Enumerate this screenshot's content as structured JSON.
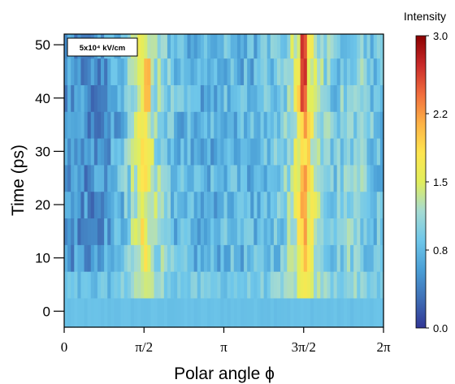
{
  "chart_data": {
    "type": "heatmap",
    "title": "",
    "xlabel": "Polar angle ϕ",
    "ylabel": "Time (ps)",
    "xlim": [
      0,
      6.2832
    ],
    "ylim": [
      -3,
      52
    ],
    "x_ticks": [
      {
        "value": 0,
        "label": "0"
      },
      {
        "value": 1.5708,
        "label": "π/2"
      },
      {
        "value": 3.1416,
        "label": "π"
      },
      {
        "value": 4.7124,
        "label": "3π/2"
      },
      {
        "value": 6.2832,
        "label": "2π"
      }
    ],
    "y_ticks": [
      {
        "value": 0,
        "label": "0"
      },
      {
        "value": 10,
        "label": "10"
      },
      {
        "value": 20,
        "label": "20"
      },
      {
        "value": 30,
        "label": "30"
      },
      {
        "value": 40,
        "label": "40"
      },
      {
        "value": 50,
        "label": "50"
      }
    ],
    "annotation": "5x10⁴ kV/cm",
    "colorbar": {
      "label": "Intensity",
      "min": 0.0,
      "max": 3.0,
      "ticks": [
        {
          "value": 0.0,
          "label": "0.0"
        },
        {
          "value": 0.8,
          "label": "0.8"
        },
        {
          "value": 1.5,
          "label": "1.5"
        },
        {
          "value": 2.2,
          "label": "2.2"
        },
        {
          "value": 3.0,
          "label": "3.0"
        }
      ],
      "colors": [
        "#313695",
        "#3f6fb6",
        "#4a9fd6",
        "#6fc7ea",
        "#a5dbd2",
        "#e1ee5c",
        "#fee54f",
        "#fdb246",
        "#f16d3d",
        "#c92a2a",
        "#8b0000"
      ]
    },
    "time_bins": [
      -3,
      2.5,
      7.5,
      12.5,
      17.5,
      22.5,
      27.5,
      32.5,
      37.5,
      42.5,
      47.5,
      52
    ],
    "angle_profile": [
      {
        "phi": 0.0,
        "intensity": 0.6
      },
      {
        "phi": 0.6,
        "intensity": 0.5
      },
      {
        "phi": 1.1,
        "intensity": 0.75
      },
      {
        "phi": 1.35,
        "intensity": 1.2
      },
      {
        "phi": 1.5708,
        "intensity": 1.7
      },
      {
        "phi": 1.8,
        "intensity": 1.2
      },
      {
        "phi": 2.2,
        "intensity": 0.8
      },
      {
        "phi": 2.8,
        "intensity": 0.7
      },
      {
        "phi": 3.1416,
        "intensity": 0.8
      },
      {
        "phi": 3.7,
        "intensity": 0.75
      },
      {
        "phi": 4.3,
        "intensity": 0.95
      },
      {
        "phi": 4.55,
        "intensity": 1.4
      },
      {
        "phi": 4.7124,
        "intensity": 2.1
      },
      {
        "phi": 4.9,
        "intensity": 1.4
      },
      {
        "phi": 5.3,
        "intensity": 0.9
      },
      {
        "phi": 5.7,
        "intensity": 1.1
      },
      {
        "phi": 6.2832,
        "intensity": 0.8
      }
    ],
    "baseline_intensity": 0.85,
    "hotspots": [
      {
        "phi": 4.7124,
        "time_from": 42,
        "time_to": 52,
        "intensity": 2.7
      },
      {
        "phi": 4.7124,
        "time_from": 38,
        "time_to": 42,
        "intensity": 2.6
      },
      {
        "phi": 1.63,
        "time_from": 38,
        "time_to": 47,
        "intensity": 2.2
      }
    ]
  }
}
